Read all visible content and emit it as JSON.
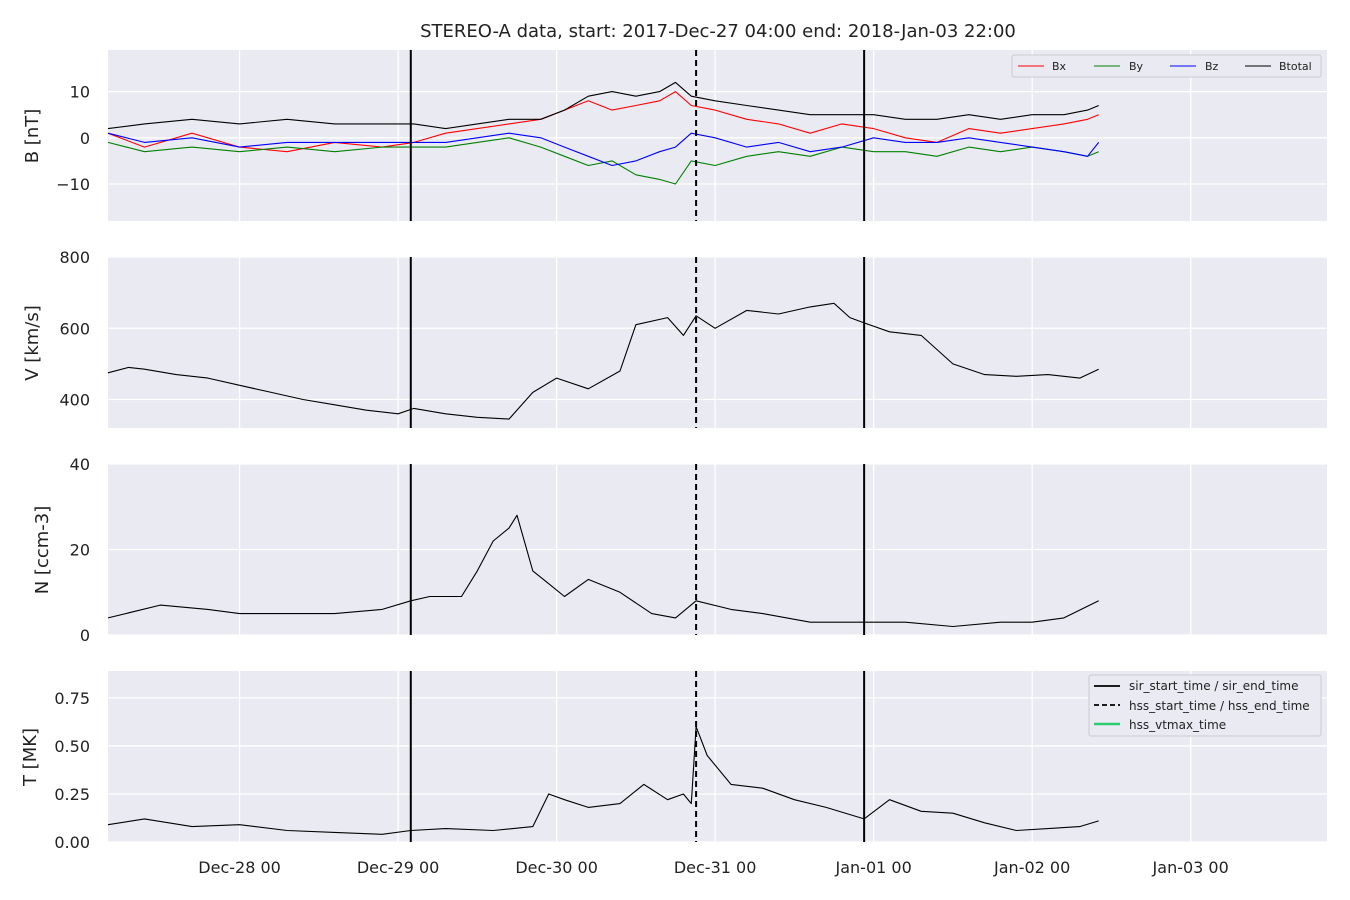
{
  "figure": {
    "title": "STEREO-A data, start: 2017-Dec-27 04:00  end: 2018-Jan-03 22:00",
    "x_tick_labels": [
      "Dec-28 00",
      "Dec-29 00",
      "Dec-30 00",
      "Dec-31 00",
      "Jan-01 00",
      "Jan-02 00",
      "Jan-03 00"
    ]
  },
  "colors": {
    "panel_bg": "#eaeaf2",
    "grid": "#ffffff",
    "Bx": "#ff0000",
    "By": "#008000",
    "Bz": "#0000ff",
    "Btotal": "#000000",
    "event_line": "#000000",
    "vtmax": "#2ecc71"
  },
  "chart_data": [
    {
      "type": "line",
      "panel": "B",
      "ylabel": "B [nT]",
      "x_unit": "days since 2017-Dec-28 00:00",
      "xlim": [
        -0.83,
        6.86
      ],
      "ylim": [
        -18,
        19
      ],
      "yticks": [
        10,
        0,
        -10
      ],
      "ytick_labels": [
        "10",
        "0",
        "−10"
      ],
      "legend": {
        "placement": "top-right",
        "entries": [
          "Bx",
          "By",
          "Bz",
          "Btotal"
        ]
      },
      "x": [
        -0.83,
        -0.6,
        -0.3,
        0.0,
        0.3,
        0.6,
        0.9,
        1.1,
        1.3,
        1.5,
        1.7,
        1.9,
        2.05,
        2.2,
        2.35,
        2.5,
        2.65,
        2.75,
        2.85,
        3.0,
        3.2,
        3.4,
        3.6,
        3.8,
        4.0,
        4.2,
        4.4,
        4.6,
        4.8,
        5.0,
        5.2,
        5.35,
        5.42
      ],
      "series": [
        {
          "name": "Bx",
          "values": [
            1,
            -2,
            1,
            -2,
            -3,
            -1,
            -2,
            -1,
            1,
            2,
            3,
            4,
            6,
            8,
            6,
            7,
            8,
            10,
            7,
            6,
            4,
            3,
            1,
            3,
            2,
            0,
            -1,
            2,
            1,
            2,
            3,
            4,
            5
          ]
        },
        {
          "name": "By",
          "values": [
            -1,
            -3,
            -2,
            -3,
            -2,
            -3,
            -2,
            -2,
            -2,
            -1,
            0,
            -2,
            -4,
            -6,
            -5,
            -8,
            -9,
            -10,
            -5,
            -6,
            -4,
            -3,
            -4,
            -2,
            -3,
            -3,
            -4,
            -2,
            -3,
            -2,
            -3,
            -4,
            -3
          ]
        },
        {
          "name": "Bz",
          "values": [
            1,
            -1,
            0,
            -2,
            -1,
            -1,
            -1,
            -1,
            -1,
            0,
            1,
            0,
            -2,
            -4,
            -6,
            -5,
            -3,
            -2,
            1,
            0,
            -2,
            -1,
            -3,
            -2,
            0,
            -1,
            -1,
            0,
            -1,
            -2,
            -3,
            -4,
            -1
          ]
        },
        {
          "name": "Btotal",
          "values": [
            2,
            3,
            4,
            3,
            4,
            3,
            3,
            3,
            2,
            3,
            4,
            4,
            6,
            9,
            10,
            9,
            10,
            12,
            9,
            8,
            7,
            6,
            5,
            5,
            5,
            4,
            4,
            5,
            4,
            5,
            5,
            6,
            7
          ]
        }
      ],
      "events": {
        "sir_start_time": 1.08,
        "hss_start_time": 2.88,
        "sir_end_time": 3.94
      }
    },
    {
      "type": "line",
      "panel": "V",
      "ylabel": "V [km/s]",
      "x_unit": "days since 2017-Dec-28 00:00",
      "xlim": [
        -0.83,
        6.86
      ],
      "ylim": [
        320,
        800
      ],
      "yticks": [
        800,
        600,
        400
      ],
      "ytick_labels": [
        "800",
        "600",
        "400"
      ],
      "x": [
        -0.83,
        -0.7,
        -0.6,
        -0.4,
        -0.2,
        0.0,
        0.2,
        0.4,
        0.6,
        0.8,
        1.0,
        1.1,
        1.3,
        1.5,
        1.7,
        1.85,
        2.0,
        2.2,
        2.4,
        2.5,
        2.7,
        2.8,
        2.88,
        3.0,
        3.2,
        3.4,
        3.6,
        3.75,
        3.85,
        3.94,
        4.1,
        4.3,
        4.5,
        4.7,
        4.9,
        5.1,
        5.3,
        5.42
      ],
      "series": [
        {
          "name": "",
          "values": [
            475,
            490,
            485,
            470,
            460,
            440,
            420,
            400,
            385,
            370,
            360,
            375,
            360,
            350,
            345,
            420,
            460,
            430,
            480,
            610,
            630,
            580,
            635,
            600,
            650,
            640,
            660,
            670,
            630,
            615,
            590,
            580,
            500,
            470,
            465,
            470,
            460,
            485
          ]
        }
      ],
      "events": {
        "sir_start_time": 1.08,
        "hss_start_time": 2.88,
        "sir_end_time": 3.94
      }
    },
    {
      "type": "line",
      "panel": "N",
      "ylabel": "N [ccm-3]",
      "x_unit": "days since 2017-Dec-28 00:00",
      "xlim": [
        -0.83,
        6.86
      ],
      "ylim": [
        0,
        40
      ],
      "yticks": [
        40,
        20,
        0
      ],
      "ytick_labels": [
        "40",
        "20",
        "0"
      ],
      "x": [
        -0.83,
        -0.5,
        -0.2,
        0.0,
        0.3,
        0.6,
        0.9,
        1.08,
        1.2,
        1.4,
        1.5,
        1.6,
        1.7,
        1.75,
        1.85,
        1.95,
        2.05,
        2.2,
        2.4,
        2.6,
        2.75,
        2.88,
        3.1,
        3.3,
        3.6,
        3.94,
        4.2,
        4.5,
        4.8,
        5.0,
        5.2,
        5.42
      ],
      "series": [
        {
          "name": "",
          "values": [
            4,
            7,
            6,
            5,
            5,
            5,
            6,
            8,
            9,
            9,
            15,
            22,
            25,
            28,
            15,
            12,
            9,
            13,
            10,
            5,
            4,
            8,
            6,
            5,
            3,
            3,
            3,
            2,
            3,
            3,
            4,
            8
          ]
        }
      ],
      "events": {
        "sir_start_time": 1.08,
        "hss_start_time": 2.88,
        "sir_end_time": 3.94
      }
    },
    {
      "type": "line",
      "panel": "T",
      "ylabel": "T [MK]",
      "x_unit": "days since 2017-Dec-28 00:00",
      "xlim": [
        -0.83,
        6.86
      ],
      "ylim": [
        0,
        0.89
      ],
      "yticks": [
        0.75,
        0.5,
        0.25,
        0.0
      ],
      "ytick_labels": [
        "0.75",
        "0.50",
        "0.25",
        "0.00"
      ],
      "legend": {
        "placement": "top-right",
        "entries": [
          "sir_start_time / sir_end_time",
          "hss_start_time / hss_end_time",
          "hss_vtmax_time"
        ]
      },
      "x": [
        -0.83,
        -0.6,
        -0.3,
        0.0,
        0.3,
        0.6,
        0.9,
        1.08,
        1.3,
        1.6,
        1.85,
        1.95,
        2.05,
        2.2,
        2.4,
        2.55,
        2.7,
        2.8,
        2.85,
        2.88,
        2.95,
        3.1,
        3.3,
        3.5,
        3.7,
        3.94,
        4.1,
        4.3,
        4.5,
        4.7,
        4.9,
        5.1,
        5.3,
        5.42
      ],
      "series": [
        {
          "name": "",
          "values": [
            0.09,
            0.12,
            0.08,
            0.09,
            0.06,
            0.05,
            0.04,
            0.06,
            0.07,
            0.06,
            0.08,
            0.25,
            0.22,
            0.18,
            0.2,
            0.3,
            0.22,
            0.25,
            0.2,
            0.6,
            0.45,
            0.3,
            0.28,
            0.22,
            0.18,
            0.12,
            0.22,
            0.16,
            0.15,
            0.1,
            0.06,
            0.07,
            0.08,
            0.11
          ]
        }
      ],
      "events": {
        "sir_start_time": 1.08,
        "hss_start_time": 2.88,
        "sir_end_time": 3.94
      }
    }
  ]
}
